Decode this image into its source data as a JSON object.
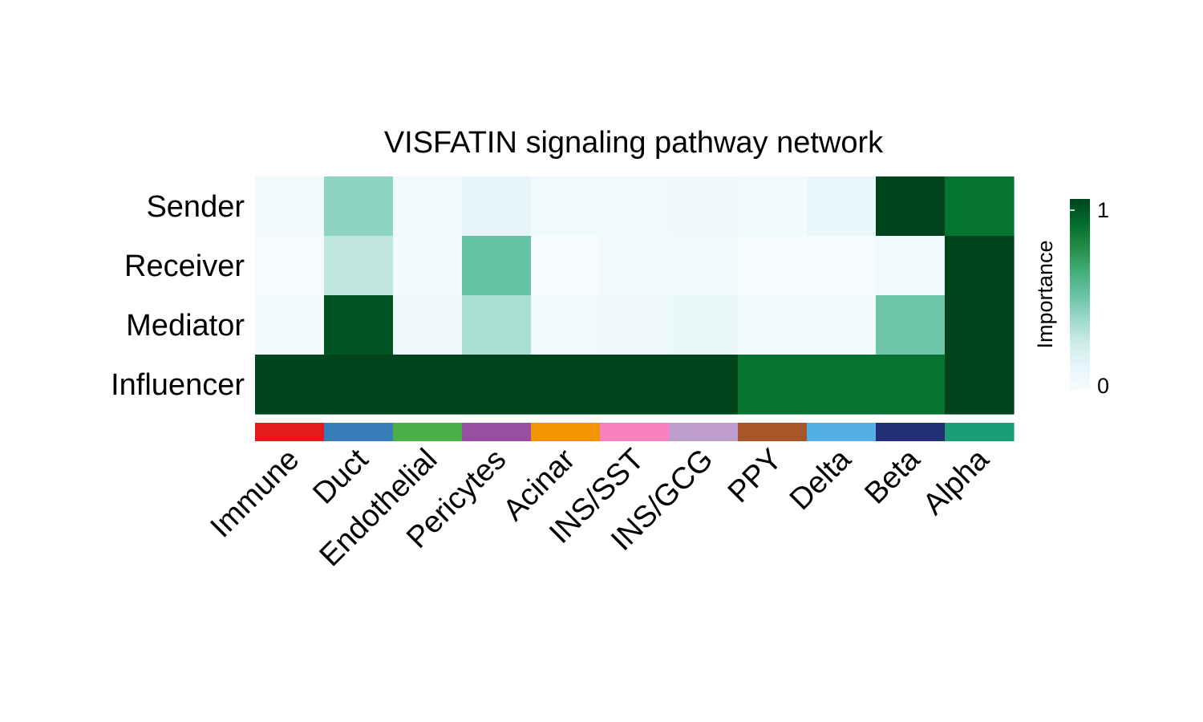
{
  "chart_data": {
    "type": "heatmap",
    "title": "VISFATIN signaling pathway network",
    "rows": [
      "Sender",
      "Receiver",
      "Mediator",
      "Influencer"
    ],
    "columns": [
      "Immune",
      "Duct",
      "Endothelial",
      "Pericytes",
      "Acinar",
      "INS/SST",
      "INS/GCG",
      "PPY",
      "Delta",
      "Beta",
      "Alpha"
    ],
    "values": [
      [
        0.03,
        0.4,
        0.04,
        0.12,
        0.05,
        0.05,
        0.06,
        0.04,
        0.09,
        1.0,
        0.85
      ],
      [
        0.01,
        0.28,
        0.04,
        0.5,
        0.01,
        0.03,
        0.04,
        0.01,
        0.01,
        0.05,
        1.0
      ],
      [
        0.02,
        0.95,
        0.06,
        0.33,
        0.05,
        0.06,
        0.08,
        0.04,
        0.03,
        0.48,
        1.0
      ],
      [
        1.0,
        1.0,
        1.0,
        1.0,
        1.0,
        1.0,
        1.0,
        0.85,
        0.85,
        0.85,
        1.0
      ]
    ],
    "group_colors": [
      "#E41A1C",
      "#377EB8",
      "#4DAF4A",
      "#984EA3",
      "#F29403",
      "#F781BF",
      "#BC9DCC",
      "#A65628",
      "#54B0E4",
      "#222F75",
      "#1B9E77"
    ],
    "colorbar": {
      "label": "Importance",
      "min": 0,
      "max": 1,
      "tick_labels": [
        "0",
        "1"
      ],
      "palette": [
        "#F7FCFD",
        "#E5F5F9",
        "#CCECE6",
        "#99D8C9",
        "#66C2A4",
        "#41AE76",
        "#238B45",
        "#006D2C",
        "#00441B"
      ]
    }
  }
}
